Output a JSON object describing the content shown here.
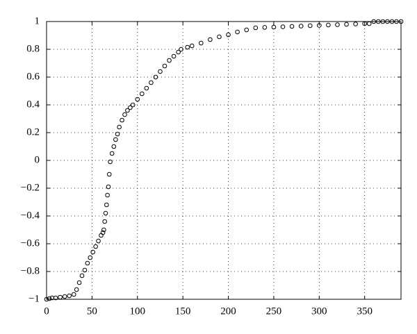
{
  "chart_data": {
    "type": "scatter",
    "grid": true,
    "marker": "circle",
    "xlim": [
      0,
      390
    ],
    "ylim": [
      -1,
      1
    ],
    "xticks": [
      0,
      50,
      100,
      150,
      200,
      250,
      300,
      350
    ],
    "yticks": [
      {
        "value": -1,
        "label": "−1"
      },
      {
        "value": -0.8,
        "label": "−0.8"
      },
      {
        "value": -0.6,
        "label": "−0.6"
      },
      {
        "value": -0.4,
        "label": "−0.4"
      },
      {
        "value": -0.2,
        "label": "−0.2"
      },
      0,
      0.2,
      0.4,
      0.6,
      0.8,
      1
    ],
    "series": [
      {
        "color": "#000000",
        "x": [
          0,
          3,
          6,
          10,
          15,
          20,
          25,
          30,
          33,
          36,
          39,
          42,
          45,
          48,
          51,
          54,
          57,
          60,
          62,
          63,
          64,
          65,
          66,
          67,
          68,
          69,
          70,
          72,
          74,
          76,
          78,
          80,
          83,
          86,
          89,
          92,
          95,
          100,
          105,
          110,
          115,
          120,
          125,
          130,
          135,
          140,
          145,
          148,
          155,
          160,
          170,
          180,
          190,
          200,
          210,
          220,
          230,
          240,
          250,
          260,
          270,
          280,
          290,
          300,
          310,
          320,
          330,
          340,
          350,
          355,
          360,
          365,
          370,
          375,
          380,
          385,
          390
        ],
        "values": [
          -1,
          -0.995,
          -0.99,
          -0.99,
          -0.985,
          -0.98,
          -0.975,
          -0.965,
          -0.93,
          -0.88,
          -0.83,
          -0.79,
          -0.74,
          -0.7,
          -0.66,
          -0.62,
          -0.58,
          -0.54,
          -0.52,
          -0.5,
          -0.44,
          -0.38,
          -0.32,
          -0.25,
          -0.19,
          -0.1,
          -0.01,
          0.05,
          0.1,
          0.15,
          0.19,
          0.24,
          0.29,
          0.33,
          0.36,
          0.38,
          0.4,
          0.44,
          0.48,
          0.52,
          0.56,
          0.6,
          0.64,
          0.68,
          0.72,
          0.75,
          0.78,
          0.8,
          0.815,
          0.825,
          0.845,
          0.87,
          0.89,
          0.905,
          0.925,
          0.94,
          0.955,
          0.958,
          0.96,
          0.962,
          0.965,
          0.967,
          0.97,
          0.972,
          0.975,
          0.977,
          0.98,
          0.982,
          0.985,
          0.985,
          1,
          1,
          1,
          1,
          1,
          1,
          1
        ]
      }
    ]
  }
}
